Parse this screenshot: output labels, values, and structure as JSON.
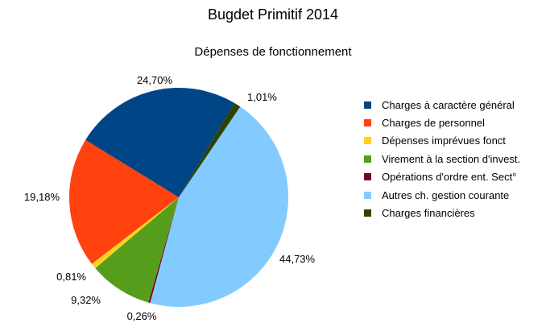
{
  "chart_data": {
    "type": "pie",
    "title": "Bugdet Primitif 2014",
    "subtitle": "Dépenses de fonctionnement",
    "slices": [
      {
        "label": "Charges à caractère général",
        "value": 24.7,
        "display": "24,70%",
        "color": "#004586"
      },
      {
        "label": "Charges de personnel",
        "value": 19.18,
        "display": "19,18%",
        "color": "#ff420e"
      },
      {
        "label": "Dépenses imprévues fonct",
        "value": 0.81,
        "display": "0,81%",
        "color": "#ffd320"
      },
      {
        "label": "Virement à la section d'invest.",
        "value": 9.32,
        "display": "9,32%",
        "color": "#579d1c"
      },
      {
        "label": "Opérations d'ordre ent. Sect°",
        "value": 0.26,
        "display": "0,26%",
        "color": "#7e0021"
      },
      {
        "label": "Autres ch. gestion courante",
        "value": 44.73,
        "display": "44,73%",
        "color": "#83caff"
      },
      {
        "label": "Charges financières",
        "value": 1.01,
        "display": "1,01%",
        "color": "#314004"
      }
    ],
    "legend_position": "right"
  }
}
